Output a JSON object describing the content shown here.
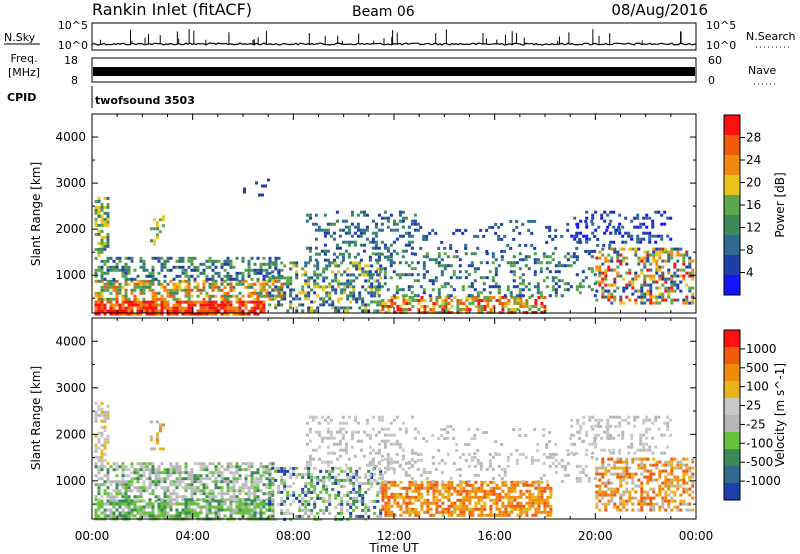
{
  "header": {
    "station": "Rankin Inlet (fitACF)",
    "beam": "Beam 06",
    "date": "08/Aug/2016"
  },
  "noise_panel": {
    "left_label": "N.Sky",
    "right_label": "N.Search",
    "y_ticks": [
      "10^5",
      "10^0"
    ]
  },
  "freq_panel": {
    "label_line1": "Freq.",
    "label_line2": "[MHz]",
    "left_ticks": [
      "18",
      "8"
    ],
    "right_label": "Nave",
    "right_ticks": [
      "60",
      "0"
    ]
  },
  "cpid": {
    "label": "CPID",
    "value": "twofsound 3503"
  },
  "colors": {
    "power": [
      "#1414ff",
      "#1e3ea8",
      "#2f6a8f",
      "#3c8a5a",
      "#5aa64a",
      "#e8c41c",
      "#f08a0c",
      "#f05a0c",
      "#ff1010"
    ],
    "velocity": [
      "#1f3fae",
      "#2f6a8f",
      "#3c8a5a",
      "#66c23a",
      "#b8b8b8",
      "#c8c8c8",
      "#e8b41c",
      "#f08a0c",
      "#f05a0c",
      "#ff1010"
    ]
  },
  "chart_data": [
    {
      "type": "heatmap",
      "title": "",
      "xlabel": "",
      "ylabel": "Slant Range [km]",
      "x_ticks": [
        "00:00",
        "04:00",
        "08:00",
        "12:00",
        "16:00",
        "20:00",
        "00:00"
      ],
      "y_ticks": [
        "1000",
        "2000",
        "3000",
        "4000"
      ],
      "xlim_hours": [
        0,
        24
      ],
      "ylim_km": [
        180,
        4500
      ],
      "colorbar": {
        "label": "Power [dB]",
        "ticks": [
          "4",
          "8",
          "12",
          "16",
          "20",
          "24",
          "28"
        ],
        "range": [
          0,
          30
        ]
      }
    },
    {
      "type": "heatmap",
      "title": "",
      "xlabel": "Time UT",
      "ylabel": "Slant Range [km]",
      "x_ticks": [
        "00:00",
        "04:00",
        "08:00",
        "12:00",
        "16:00",
        "20:00",
        "00:00"
      ],
      "y_ticks": [
        "1000",
        "2000",
        "3000",
        "4000"
      ],
      "xlim_hours": [
        0,
        24
      ],
      "ylim_km": [
        180,
        4500
      ],
      "colorbar": {
        "label": "Velocity [m s^-1]",
        "ticks": [
          "1000",
          "500",
          "100",
          "25",
          "-25",
          "-100",
          "-500",
          "-1000"
        ]
      }
    }
  ]
}
